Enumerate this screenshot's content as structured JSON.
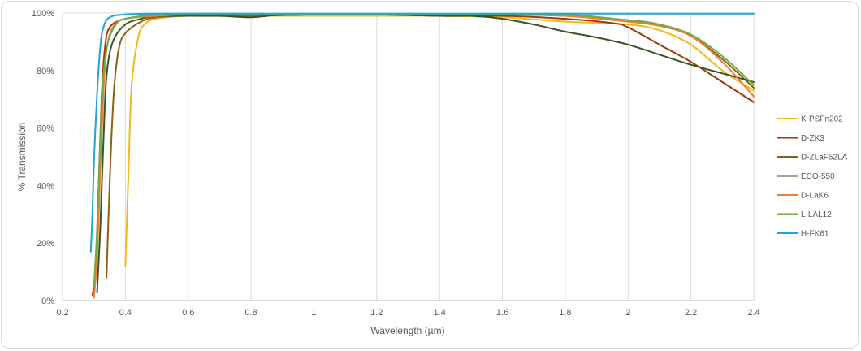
{
  "chart_data": {
    "type": "line",
    "xlabel": "Wavelength (µm)",
    "ylabel": "% Transmission",
    "xlim": [
      0.2,
      2.4
    ],
    "ylim": [
      0,
      100
    ],
    "x_ticks": [
      "0.2",
      "0.4",
      "0.6",
      "0.8",
      "1",
      "1.2",
      "1.4",
      "1.6",
      "1.8",
      "2",
      "2.2",
      "2.4"
    ],
    "y_ticks": [
      "0%",
      "20%",
      "40%",
      "60%",
      "80%",
      "100%"
    ],
    "grid": "vertical gridlines",
    "legend_position": "right",
    "series": [
      {
        "name": "K-PSFn202",
        "color": "#F0B91E",
        "points": [
          [
            0.4,
            12
          ],
          [
            0.41,
            45
          ],
          [
            0.42,
            75
          ],
          [
            0.44,
            91
          ],
          [
            0.46,
            96
          ],
          [
            0.5,
            98
          ],
          [
            0.6,
            99
          ],
          [
            0.8,
            99
          ],
          [
            1.0,
            99
          ],
          [
            1.2,
            99
          ],
          [
            1.4,
            99
          ],
          [
            1.6,
            98.5
          ],
          [
            1.8,
            97
          ],
          [
            2.0,
            96
          ],
          [
            2.1,
            94
          ],
          [
            2.2,
            89
          ],
          [
            2.3,
            80
          ],
          [
            2.4,
            73
          ]
        ]
      },
      {
        "name": "D-ZK3",
        "color": "#9E3A0B",
        "points": [
          [
            0.295,
            2
          ],
          [
            0.305,
            10
          ],
          [
            0.315,
            40
          ],
          [
            0.325,
            72
          ],
          [
            0.335,
            88
          ],
          [
            0.35,
            95
          ],
          [
            0.4,
            98
          ],
          [
            0.5,
            99
          ],
          [
            0.6,
            99
          ],
          [
            0.8,
            99
          ],
          [
            1.0,
            99.5
          ],
          [
            1.2,
            99.5
          ],
          [
            1.4,
            99
          ],
          [
            1.6,
            99
          ],
          [
            1.8,
            98
          ],
          [
            1.95,
            96.5
          ],
          [
            2.0,
            95
          ],
          [
            2.1,
            89
          ],
          [
            2.2,
            83
          ],
          [
            2.3,
            76
          ],
          [
            2.4,
            69
          ]
        ]
      },
      {
        "name": "D-ZLaF52LA",
        "color": "#8B6214",
        "points": [
          [
            0.34,
            8
          ],
          [
            0.345,
            25
          ],
          [
            0.355,
            55
          ],
          [
            0.365,
            75
          ],
          [
            0.38,
            88
          ],
          [
            0.4,
            93
          ],
          [
            0.45,
            97
          ],
          [
            0.5,
            98.5
          ],
          [
            0.6,
            99
          ],
          [
            0.8,
            99
          ],
          [
            1.0,
            99.5
          ],
          [
            1.2,
            99.5
          ],
          [
            1.4,
            99.5
          ],
          [
            1.6,
            99.5
          ],
          [
            1.8,
            99
          ],
          [
            2.0,
            97.5
          ],
          [
            2.1,
            96
          ],
          [
            2.2,
            92
          ],
          [
            2.3,
            84
          ],
          [
            2.4,
            74
          ]
        ]
      },
      {
        "name": "ECO-550",
        "color": "#375623",
        "points": [
          [
            0.31,
            3
          ],
          [
            0.32,
            25
          ],
          [
            0.33,
            55
          ],
          [
            0.34,
            78
          ],
          [
            0.36,
            90
          ],
          [
            0.4,
            96
          ],
          [
            0.45,
            98
          ],
          [
            0.5,
            99
          ],
          [
            0.6,
            99
          ],
          [
            0.7,
            99
          ],
          [
            0.8,
            98.5
          ],
          [
            0.9,
            99.5
          ],
          [
            1.0,
            99.5
          ],
          [
            1.2,
            99.5
          ],
          [
            1.4,
            99
          ],
          [
            1.5,
            99
          ],
          [
            1.6,
            98
          ],
          [
            1.7,
            96
          ],
          [
            1.8,
            93.5
          ],
          [
            1.9,
            91.5
          ],
          [
            2.0,
            89
          ],
          [
            2.1,
            85.5
          ],
          [
            2.2,
            82
          ],
          [
            2.3,
            79
          ],
          [
            2.4,
            76
          ]
        ]
      },
      {
        "name": "D-LaK6",
        "color": "#F07C32",
        "points": [
          [
            0.3,
            1
          ],
          [
            0.31,
            15
          ],
          [
            0.32,
            45
          ],
          [
            0.33,
            72
          ],
          [
            0.34,
            87
          ],
          [
            0.36,
            95
          ],
          [
            0.4,
            98
          ],
          [
            0.5,
            99
          ],
          [
            0.6,
            99.5
          ],
          [
            0.8,
            99.5
          ],
          [
            1.0,
            99.5
          ],
          [
            1.2,
            99.5
          ],
          [
            1.4,
            99.5
          ],
          [
            1.6,
            99.5
          ],
          [
            1.8,
            99
          ],
          [
            2.0,
            97
          ],
          [
            2.1,
            95.5
          ],
          [
            2.2,
            92
          ],
          [
            2.3,
            83
          ],
          [
            2.4,
            71
          ]
        ]
      },
      {
        "name": "L-LAL12",
        "color": "#70AD47",
        "points": [
          [
            0.3,
            5
          ],
          [
            0.31,
            25
          ],
          [
            0.32,
            55
          ],
          [
            0.33,
            78
          ],
          [
            0.345,
            90
          ],
          [
            0.37,
            96
          ],
          [
            0.4,
            98
          ],
          [
            0.5,
            99.5
          ],
          [
            0.6,
            99.5
          ],
          [
            0.8,
            99.5
          ],
          [
            1.0,
            99.5
          ],
          [
            1.2,
            99.5
          ],
          [
            1.4,
            99.5
          ],
          [
            1.6,
            99.5
          ],
          [
            1.8,
            99.5
          ],
          [
            2.0,
            97.5
          ],
          [
            2.1,
            96
          ],
          [
            2.2,
            92.5
          ],
          [
            2.3,
            85
          ],
          [
            2.4,
            75
          ]
        ]
      },
      {
        "name": "H-FK61",
        "color": "#1FA3D8",
        "points": [
          [
            0.29,
            17
          ],
          [
            0.295,
            30
          ],
          [
            0.3,
            48
          ],
          [
            0.31,
            72
          ],
          [
            0.32,
            88
          ],
          [
            0.33,
            95
          ],
          [
            0.35,
            98.5
          ],
          [
            0.4,
            99.5
          ],
          [
            0.5,
            99.8
          ],
          [
            0.8,
            99.8
          ],
          [
            1.0,
            99.8
          ],
          [
            1.6,
            99.8
          ],
          [
            2.0,
            99.8
          ],
          [
            2.4,
            99.8
          ]
        ]
      }
    ]
  }
}
